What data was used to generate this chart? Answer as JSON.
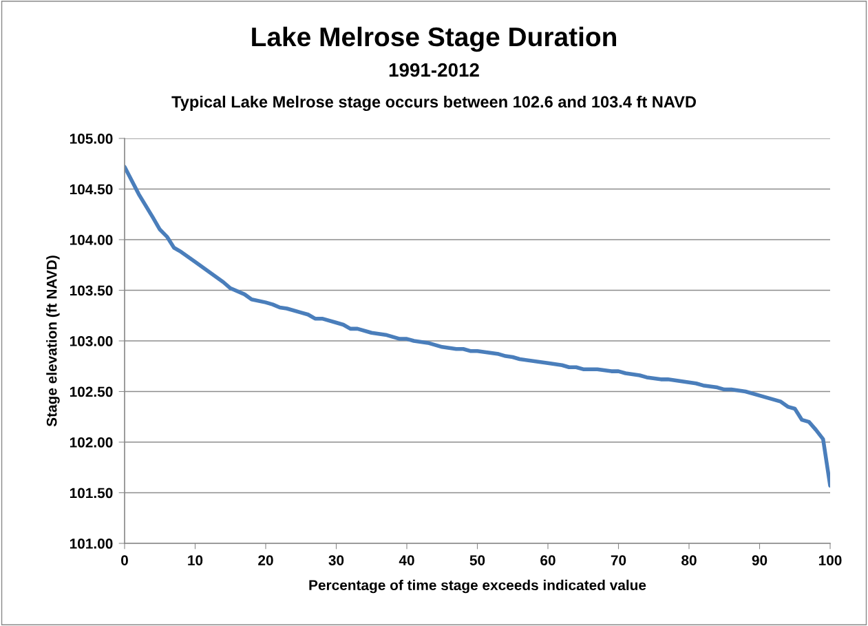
{
  "chart_data": {
    "type": "line",
    "title": "Lake Melrose Stage Duration",
    "subtitle": "1991-2012",
    "annotations": [
      "Typical Lake Melrose stage occurs between 102.6 and 103.4 ft NAVD"
    ],
    "xlabel": "Percentage of time stage exceeds indicated value",
    "ylabel": "Stage elevation (ft NAVD)",
    "xlim": [
      0,
      100
    ],
    "xticks": [
      0,
      10,
      20,
      30,
      40,
      50,
      60,
      70,
      80,
      90,
      100
    ],
    "ylim": [
      101,
      105
    ],
    "yticks": [
      {
        "value": 101,
        "label": "101.00"
      },
      {
        "value": 101.5,
        "label": "101.50"
      },
      {
        "value": 102,
        "label": "102.00"
      },
      {
        "value": 102.5,
        "label": "102.50"
      },
      {
        "value": 103,
        "label": "103.00"
      },
      {
        "value": 103.5,
        "label": "103.50"
      },
      {
        "value": 104,
        "label": "104.00"
      },
      {
        "value": 104.5,
        "label": "104.50"
      },
      {
        "value": 105,
        "label": "105.00"
      }
    ],
    "grid": "y",
    "legend": false,
    "marker": "none",
    "line_style": "solid",
    "x": [
      0,
      2,
      4,
      5,
      6,
      7,
      8,
      10,
      12,
      14,
      15,
      17,
      18,
      20,
      21,
      22,
      23,
      25,
      26,
      27,
      28,
      30,
      31,
      32,
      33,
      35,
      37,
      39,
      40,
      41,
      43,
      45,
      47,
      48,
      49,
      50,
      53,
      54,
      55,
      56,
      60,
      62,
      63,
      64,
      65,
      67,
      69,
      70,
      71,
      73,
      74,
      76,
      77,
      80,
      81,
      82,
      84,
      85,
      86,
      87,
      88,
      90,
      93,
      94,
      95,
      96,
      97,
      98,
      99,
      100
    ],
    "series": [
      {
        "color": "#4a7ebb",
        "values": [
          104.72,
          104.45,
          104.22,
          104.1,
          104.03,
          103.92,
          103.88,
          103.78,
          103.68,
          103.58,
          103.52,
          103.46,
          103.41,
          103.38,
          103.36,
          103.33,
          103.32,
          103.28,
          103.26,
          103.22,
          103.22,
          103.18,
          103.16,
          103.12,
          103.12,
          103.08,
          103.06,
          103.02,
          103.02,
          103.0,
          102.98,
          102.94,
          102.92,
          102.92,
          102.9,
          102.9,
          102.87,
          102.85,
          102.84,
          102.82,
          102.78,
          102.76,
          102.74,
          102.74,
          102.72,
          102.72,
          102.7,
          102.7,
          102.68,
          102.66,
          102.64,
          102.62,
          102.62,
          102.59,
          102.58,
          102.56,
          102.54,
          102.52,
          102.52,
          102.51,
          102.5,
          102.46,
          102.4,
          102.35,
          102.33,
          102.22,
          102.2,
          102.12,
          102.03,
          101.57
        ]
      }
    ]
  }
}
